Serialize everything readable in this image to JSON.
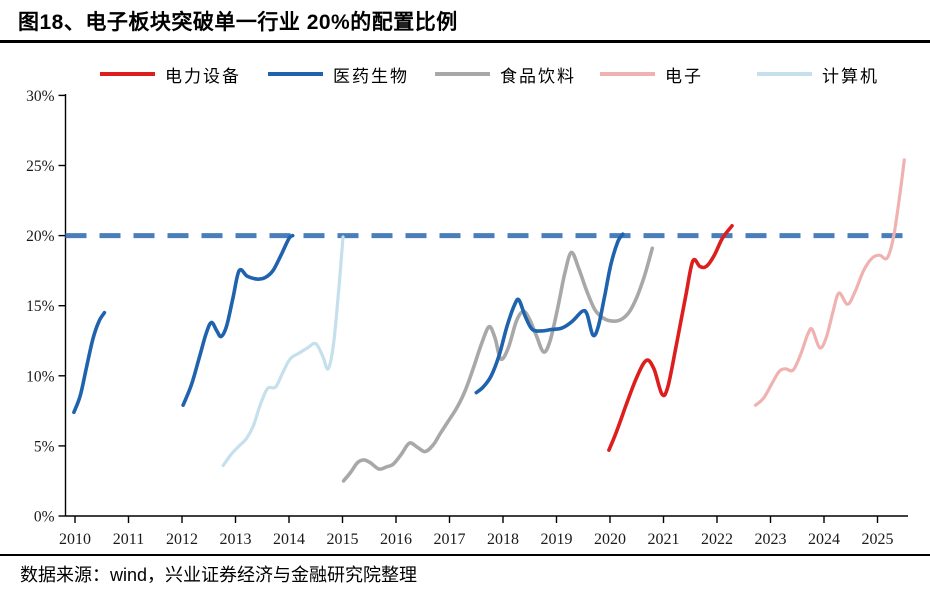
{
  "header": {
    "title": "图18、电子板块突破单一行业 20%的配置比例"
  },
  "footer": {
    "source": "数据来源：wind，兴业证券经济与金融研究院整理"
  },
  "chart_data": {
    "type": "line",
    "title": "电子板块突破单一行业 20%的配置比例",
    "xlabel": "",
    "ylabel": "",
    "grid": false,
    "legend_position": "top",
    "ylim": [
      0,
      30
    ],
    "xlim": [
      2009.8,
      2025.7
    ],
    "y_axis": {
      "unit": "%",
      "ticks": [
        {
          "v": 0,
          "label": "0%"
        },
        {
          "v": 5,
          "label": "5%"
        },
        {
          "v": 10,
          "label": "10%"
        },
        {
          "v": 15,
          "label": "15%"
        },
        {
          "v": 20,
          "label": "20%"
        },
        {
          "v": 25,
          "label": "25%"
        },
        {
          "v": 30,
          "label": "30%"
        }
      ]
    },
    "x_axis": {
      "ticks": [
        {
          "v": 2010,
          "label": "2010"
        },
        {
          "v": 2011,
          "label": "2011"
        },
        {
          "v": 2012,
          "label": "2012"
        },
        {
          "v": 2013,
          "label": "2013"
        },
        {
          "v": 2014,
          "label": "2014"
        },
        {
          "v": 2015,
          "label": "2015"
        },
        {
          "v": 2016,
          "label": "2016"
        },
        {
          "v": 2017,
          "label": "2017"
        },
        {
          "v": 2018,
          "label": "2018"
        },
        {
          "v": 2019,
          "label": "2019"
        },
        {
          "v": 2020,
          "label": "2020"
        },
        {
          "v": 2021,
          "label": "2021"
        },
        {
          "v": 2022,
          "label": "2022"
        },
        {
          "v": 2023,
          "label": "2023"
        },
        {
          "v": 2024,
          "label": "2024"
        },
        {
          "v": 2025,
          "label": "2025"
        }
      ]
    },
    "reference_line": {
      "value": 20,
      "style": "dashed",
      "color": "#4a7ebb"
    },
    "series": [
      {
        "name": "电力设备",
        "color": "#dd1e1e",
        "width": 3.6,
        "segments": [
          [
            [
              2019.98,
              4.7
            ],
            [
              2020.12,
              6.0
            ],
            [
              2020.3,
              7.9
            ],
            [
              2020.5,
              9.9
            ],
            [
              2020.68,
              11.1
            ],
            [
              2020.82,
              10.5
            ],
            [
              2020.97,
              8.7
            ],
            [
              2021.08,
              9.2
            ],
            [
              2021.25,
              12.4
            ],
            [
              2021.42,
              15.8
            ],
            [
              2021.55,
              18.2
            ],
            [
              2021.68,
              17.8
            ],
            [
              2021.8,
              17.8
            ],
            [
              2021.95,
              18.6
            ],
            [
              2022.1,
              19.8
            ],
            [
              2022.28,
              20.7
            ]
          ]
        ]
      },
      {
        "name": "医药生物",
        "color": "#1f63ae",
        "width": 3.6,
        "segments": [
          [
            [
              2009.98,
              7.4
            ],
            [
              2010.1,
              8.6
            ],
            [
              2010.22,
              10.7
            ],
            [
              2010.34,
              12.7
            ],
            [
              2010.45,
              13.9
            ],
            [
              2010.55,
              14.5
            ]
          ],
          [
            [
              2012.02,
              7.9
            ],
            [
              2012.18,
              9.4
            ],
            [
              2012.33,
              11.4
            ],
            [
              2012.45,
              13.0
            ],
            [
              2012.55,
              13.8
            ],
            [
              2012.65,
              13.2
            ],
            [
              2012.73,
              12.8
            ],
            [
              2012.83,
              13.5
            ],
            [
              2012.95,
              15.5
            ],
            [
              2013.07,
              17.5
            ],
            [
              2013.22,
              17.1
            ],
            [
              2013.4,
              16.9
            ],
            [
              2013.55,
              17.0
            ],
            [
              2013.7,
              17.5
            ],
            [
              2013.85,
              18.6
            ],
            [
              2014.0,
              19.8
            ],
            [
              2014.07,
              20.0
            ]
          ],
          [
            [
              2017.5,
              8.8
            ],
            [
              2017.63,
              9.2
            ],
            [
              2017.78,
              10.0
            ],
            [
              2017.93,
              11.5
            ],
            [
              2018.08,
              13.6
            ],
            [
              2018.22,
              15.1
            ],
            [
              2018.3,
              15.4
            ],
            [
              2018.42,
              14.2
            ],
            [
              2018.55,
              13.3
            ],
            [
              2018.72,
              13.2
            ],
            [
              2018.9,
              13.3
            ],
            [
              2019.1,
              13.4
            ],
            [
              2019.3,
              13.9
            ],
            [
              2019.48,
              14.6
            ],
            [
              2019.57,
              14.4
            ],
            [
              2019.68,
              12.9
            ],
            [
              2019.78,
              13.5
            ],
            [
              2019.9,
              15.7
            ],
            [
              2020.02,
              18.0
            ],
            [
              2020.15,
              19.6
            ],
            [
              2020.24,
              20.1
            ]
          ]
        ]
      },
      {
        "name": "食品饮料",
        "color": "#a8a8a8",
        "width": 3.6,
        "segments": [
          [
            [
              2015.02,
              2.5
            ],
            [
              2015.15,
              3.1
            ],
            [
              2015.28,
              3.8
            ],
            [
              2015.4,
              4.0
            ],
            [
              2015.52,
              3.8
            ],
            [
              2015.68,
              3.35
            ],
            [
              2015.82,
              3.5
            ],
            [
              2015.95,
              3.7
            ],
            [
              2016.1,
              4.4
            ],
            [
              2016.25,
              5.2
            ],
            [
              2016.4,
              4.9
            ],
            [
              2016.55,
              4.6
            ],
            [
              2016.7,
              5.1
            ],
            [
              2016.83,
              5.9
            ],
            [
              2017.0,
              6.9
            ],
            [
              2017.15,
              7.8
            ],
            [
              2017.3,
              9.0
            ],
            [
              2017.45,
              10.6
            ],
            [
              2017.6,
              12.3
            ],
            [
              2017.74,
              13.5
            ],
            [
              2017.85,
              12.7
            ],
            [
              2017.96,
              11.2
            ],
            [
              2018.1,
              12.0
            ],
            [
              2018.25,
              13.9
            ],
            [
              2018.38,
              14.6
            ],
            [
              2018.5,
              14.0
            ],
            [
              2018.63,
              12.8
            ],
            [
              2018.76,
              11.7
            ],
            [
              2018.88,
              12.5
            ],
            [
              2019.02,
              14.8
            ],
            [
              2019.16,
              17.4
            ],
            [
              2019.28,
              18.8
            ],
            [
              2019.42,
              17.6
            ],
            [
              2019.57,
              16.0
            ],
            [
              2019.72,
              14.7
            ],
            [
              2019.88,
              14.1
            ],
            [
              2020.05,
              13.9
            ],
            [
              2020.2,
              14.0
            ],
            [
              2020.35,
              14.5
            ],
            [
              2020.5,
              15.6
            ],
            [
              2020.65,
              17.2
            ],
            [
              2020.79,
              19.1
            ]
          ]
        ]
      },
      {
        "name": "电子",
        "color": "#efb2b0",
        "width": 3.2,
        "segments": [
          [
            [
              2022.72,
              7.9
            ],
            [
              2022.87,
              8.4
            ],
            [
              2023.02,
              9.4
            ],
            [
              2023.16,
              10.3
            ],
            [
              2023.28,
              10.5
            ],
            [
              2023.42,
              10.4
            ],
            [
              2023.56,
              11.5
            ],
            [
              2023.7,
              13.0
            ],
            [
              2023.78,
              13.3
            ],
            [
              2023.92,
              12.0
            ],
            [
              2024.04,
              12.7
            ],
            [
              2024.17,
              14.6
            ],
            [
              2024.28,
              15.9
            ],
            [
              2024.44,
              15.1
            ],
            [
              2024.58,
              16.0
            ],
            [
              2024.74,
              17.5
            ],
            [
              2024.9,
              18.4
            ],
            [
              2025.04,
              18.6
            ],
            [
              2025.18,
              18.4
            ],
            [
              2025.3,
              19.9
            ],
            [
              2025.42,
              23.0
            ],
            [
              2025.5,
              25.4
            ]
          ]
        ]
      },
      {
        "name": "计算机",
        "color": "#c6dfec",
        "width": 3.2,
        "segments": [
          [
            [
              2012.77,
              3.6
            ],
            [
              2012.92,
              4.4
            ],
            [
              2013.07,
              5.0
            ],
            [
              2013.2,
              5.5
            ],
            [
              2013.33,
              6.4
            ],
            [
              2013.47,
              8.0
            ],
            [
              2013.6,
              9.1
            ],
            [
              2013.75,
              9.2
            ],
            [
              2013.88,
              10.2
            ],
            [
              2014.02,
              11.2
            ],
            [
              2014.18,
              11.6
            ],
            [
              2014.35,
              12.0
            ],
            [
              2014.5,
              12.3
            ],
            [
              2014.63,
              11.4
            ],
            [
              2014.73,
              10.5
            ],
            [
              2014.83,
              12.2
            ],
            [
              2014.93,
              16.2
            ],
            [
              2015.01,
              19.9
            ]
          ]
        ]
      }
    ]
  }
}
